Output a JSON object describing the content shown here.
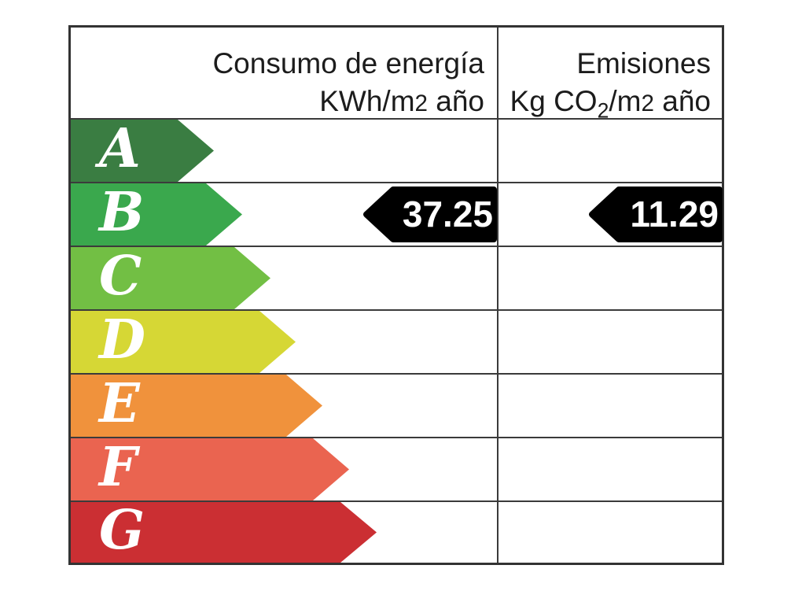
{
  "header": {
    "col1": {
      "title": "Consumo de energía",
      "unit": {
        "prefix": "KWh/m",
        "sup": "2",
        "suffix": " año"
      }
    },
    "col2": {
      "title": "Emisiones",
      "unit": {
        "prefix": "Kg CO",
        "sub": "2",
        "mid": "/m",
        "sup": "2",
        "suffix": " año"
      }
    }
  },
  "ratings": [
    {
      "letter": "A",
      "color": "#3a7d42",
      "tip": 182
    },
    {
      "letter": "B",
      "color": "#3aa84d",
      "tip": 218
    },
    {
      "letter": "C",
      "color": "#72bf44",
      "tip": 254
    },
    {
      "letter": "D",
      "color": "#d6d735",
      "tip": 286
    },
    {
      "letter": "E",
      "color": "#f0923c",
      "tip": 320
    },
    {
      "letter": "F",
      "color": "#ea6450",
      "tip": 354
    },
    {
      "letter": "G",
      "color": "#cb2f33",
      "tip": 389
    }
  ],
  "result": {
    "rating": "B",
    "consumption_value": "37.25",
    "emissions_value": "11.29",
    "marker_color": "#000000",
    "marker_text_color": "#ffffff"
  },
  "chart_data": {
    "type": "bar",
    "categories": [
      "A",
      "B",
      "C",
      "D",
      "E",
      "F",
      "G"
    ],
    "bar_colors": [
      "#3a7d42",
      "#3aa84d",
      "#72bf44",
      "#d6d735",
      "#f0923c",
      "#ea6450",
      "#cb2f33"
    ],
    "columns": [
      "Consumo de energía KWh/m2 año",
      "Emisiones Kg CO2/m2 año"
    ],
    "selected_rating": "B",
    "values": [
      {
        "column": "Consumo de energía KWh/m2 año",
        "rating": "B",
        "value": 37.25
      },
      {
        "column": "Emisiones Kg CO2/m2 año",
        "rating": "B",
        "value": 11.29
      }
    ],
    "legend": "none",
    "grid": "table-lines",
    "orientation": "horizontal"
  }
}
